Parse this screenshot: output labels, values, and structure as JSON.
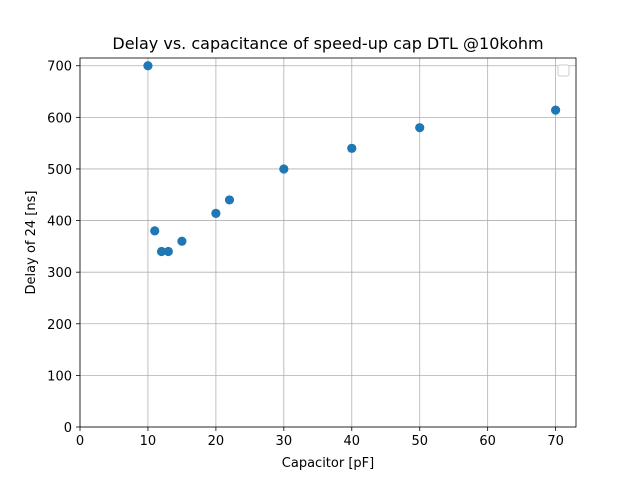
{
  "chart_data": {
    "type": "scatter",
    "title": "Delay vs. capacitance of speed-up cap DTL @10kohm",
    "xlabel": "Capacitor [pF]",
    "ylabel": "Delay of 24 [ns]",
    "xlim": [
      0,
      73
    ],
    "ylim": [
      0,
      715
    ],
    "xticks": [
      0,
      10,
      20,
      30,
      40,
      50,
      60,
      70
    ],
    "yticks": [
      0,
      100,
      200,
      300,
      400,
      500,
      600,
      700
    ],
    "grid": true,
    "legend": "top-right (empty)",
    "marker_color": "#1f77b4",
    "x": [
      10,
      11,
      12,
      13,
      15,
      20,
      22,
      30,
      40,
      50,
      70
    ],
    "y": [
      700,
      380,
      340,
      340,
      360,
      414,
      440,
      500,
      540,
      580,
      614
    ]
  }
}
